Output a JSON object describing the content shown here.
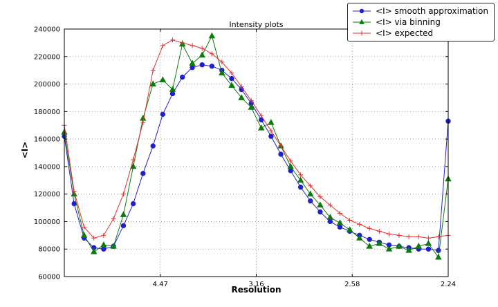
{
  "figure": {
    "title": "Intensity plots",
    "xlabel": "Resolution",
    "ylabel": "<I>"
  },
  "chart_data": {
    "type": "line",
    "title": "Intensity plots",
    "xlabel": "Resolution",
    "ylabel": "<I>",
    "xlim": [
      0,
      0.2
    ],
    "ylim": [
      60000,
      240000
    ],
    "grid": true,
    "legend_position": "upper right outside",
    "x_ticks": [
      {
        "value": 0.05,
        "label": "4.47"
      },
      {
        "value": 0.1,
        "label": "3.16"
      },
      {
        "value": 0.15,
        "label": "2.58"
      },
      {
        "value": 0.2,
        "label": "2.24"
      }
    ],
    "y_ticks": [
      60000,
      80000,
      100000,
      120000,
      140000,
      160000,
      180000,
      200000,
      220000,
      240000
    ],
    "x": [
      0,
      0.0051,
      0.0103,
      0.0154,
      0.0205,
      0.0256,
      0.0308,
      0.0359,
      0.041,
      0.0462,
      0.0513,
      0.0564,
      0.0615,
      0.0667,
      0.0718,
      0.0769,
      0.0821,
      0.0872,
      0.0923,
      0.0974,
      0.1026,
      0.1077,
      0.1128,
      0.1179,
      0.1231,
      0.1282,
      0.1333,
      0.1385,
      0.1436,
      0.1487,
      0.1538,
      0.159,
      0.1641,
      0.1692,
      0.1744,
      0.1795,
      0.1846,
      0.1897,
      0.1949,
      0.2
    ],
    "series": [
      {
        "name": "<I> smooth approximation",
        "color": "#2020cc",
        "marker": "circle",
        "values": [
          162000,
          113000,
          88000,
          81000,
          80000,
          82000,
          97000,
          113000,
          135000,
          155000,
          178000,
          193000,
          205000,
          212000,
          214000,
          213000,
          210000,
          204000,
          196000,
          186000,
          174000,
          162000,
          149000,
          137000,
          125000,
          115000,
          107000,
          100000,
          96000,
          93000,
          90000,
          87000,
          85000,
          83000,
          82000,
          81000,
          80000,
          80000,
          79000,
          173000
        ]
      },
      {
        "name": "<I> via binning",
        "color": "#0c7a0c",
        "marker": "triangle",
        "values": [
          165000,
          120000,
          90000,
          78000,
          83000,
          82000,
          105000,
          140000,
          175000,
          200000,
          203000,
          196000,
          229000,
          215000,
          221000,
          235000,
          208000,
          199000,
          190000,
          183000,
          168000,
          172000,
          155000,
          140000,
          130000,
          120000,
          112000,
          103000,
          99000,
          94000,
          88000,
          82000,
          84000,
          80000,
          82000,
          79000,
          82000,
          84000,
          74000,
          131000
        ]
      },
      {
        "name": "<I> expected",
        "color": "#e83030",
        "marker": "plus",
        "values": [
          170000,
          122000,
          96000,
          88000,
          90000,
          102000,
          120000,
          145000,
          172000,
          210000,
          228000,
          232000,
          230000,
          228000,
          226000,
          222000,
          216000,
          208000,
          198000,
          188000,
          177000,
          166000,
          155000,
          144000,
          134000,
          126000,
          118000,
          112000,
          106000,
          101000,
          98000,
          95000,
          93000,
          91000,
          90000,
          89000,
          89000,
          88000,
          89000,
          90000
        ]
      }
    ]
  }
}
